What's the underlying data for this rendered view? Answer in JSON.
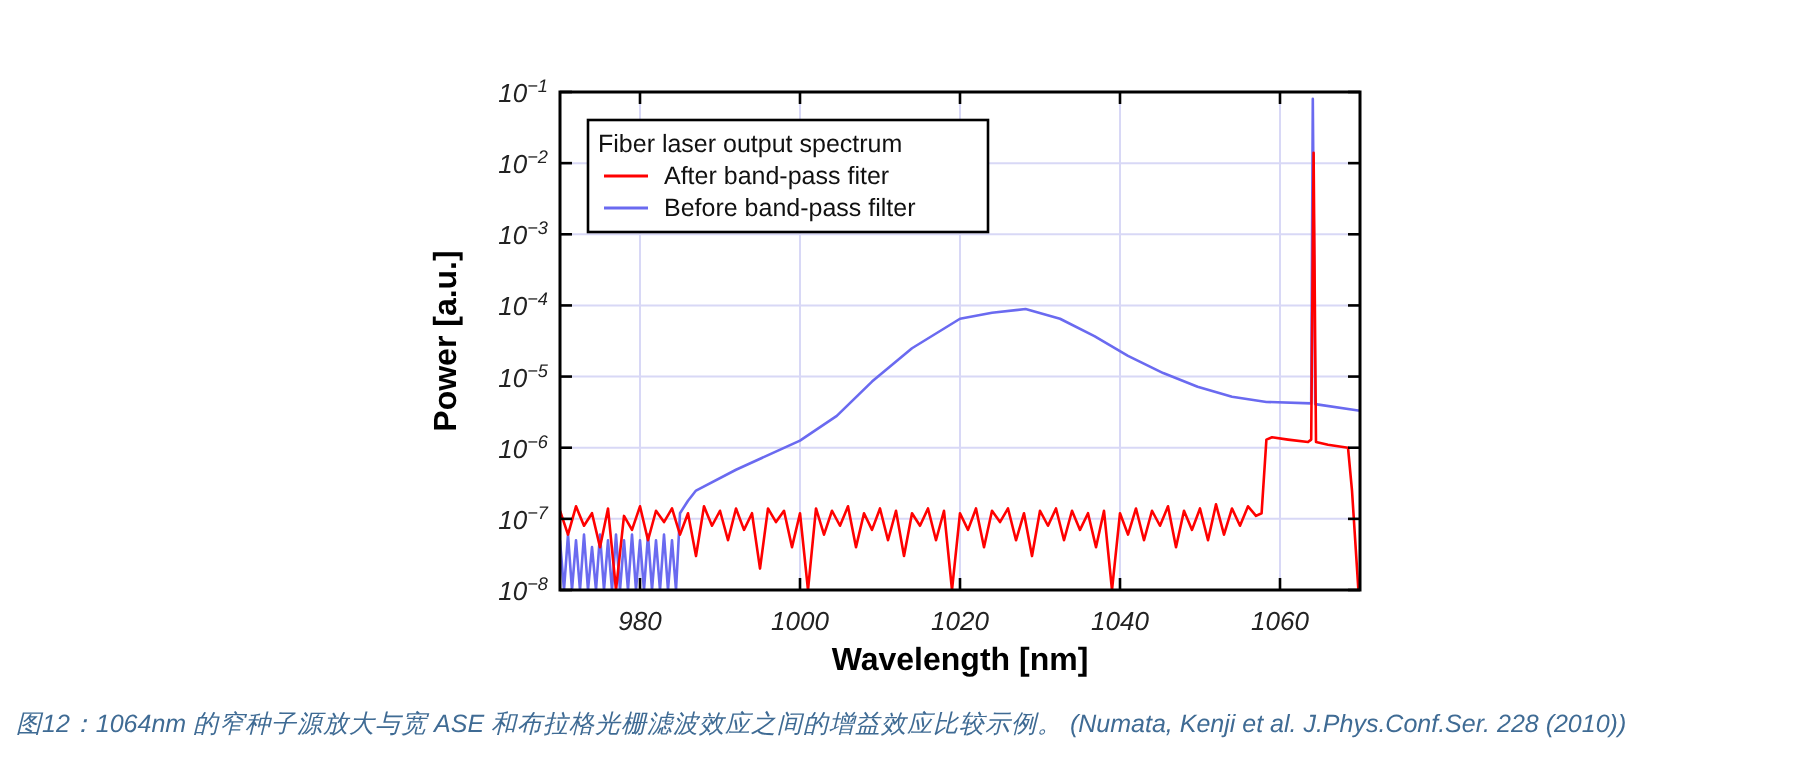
{
  "chart_data": {
    "type": "line",
    "xlabel": "Wavelength [nm]",
    "ylabel": "Power [a.u.]",
    "legend_title": "Fiber laser output spectrum",
    "legend": "top left",
    "grid": true,
    "log": "y",
    "xlim": [
      970,
      1070
    ],
    "xticks": [
      980,
      1000,
      1020,
      1040,
      1060
    ],
    "ylim": [
      1e-08,
      0.1
    ],
    "yticks": [
      {
        "value": 1e-08,
        "label": "10$^{−8}$"
      },
      {
        "value": 1e-07,
        "label": "10$^{−7}$"
      },
      {
        "value": 1e-06,
        "label": "10$^{−6}$"
      },
      {
        "value": 1e-05,
        "label": "10$^{−5}$"
      },
      {
        "value": 0.0001,
        "label": "10$^{−4}$"
      },
      {
        "value": 0.001,
        "label": "10$^{−3}$"
      },
      {
        "value": 0.01,
        "label": "10$^{−2}$"
      },
      {
        "value": 0.1,
        "label": "10$^{−1}$"
      }
    ],
    "series": [
      {
        "name": "After band-pass fiter",
        "color": "#ff0000",
        "x": [
          970,
          971,
          972,
          973,
          974,
          975,
          976,
          977,
          978,
          979,
          980,
          981,
          982,
          983,
          984,
          985,
          986,
          987,
          988,
          989,
          990,
          991,
          992,
          993,
          994,
          995,
          996,
          997,
          998,
          999,
          1000,
          1001,
          1002,
          1003,
          1004,
          1005,
          1006,
          1007,
          1008,
          1009,
          1010,
          1011,
          1012,
          1013,
          1014,
          1015,
          1016,
          1017,
          1018,
          1019,
          1020,
          1021,
          1022,
          1023,
          1024,
          1025,
          1026,
          1027,
          1028,
          1029,
          1030,
          1031,
          1032,
          1033,
          1034,
          1035,
          1036,
          1037,
          1038,
          1039,
          1040,
          1041,
          1042,
          1043,
          1044,
          1045,
          1046,
          1047,
          1048,
          1049,
          1050,
          1051,
          1052,
          1053,
          1054,
          1055,
          1056,
          1057,
          1057.7,
          1058.3,
          1059,
          1061,
          1063.5,
          1063.9,
          1064.2,
          1064.5,
          1066,
          1068.5,
          1069,
          1069.8
        ],
        "values": [
          1.3e-07,
          6e-08,
          1.5e-07,
          8e-08,
          1.2e-07,
          4e-08,
          1.4e-07,
          1e-08,
          1.1e-07,
          7e-08,
          1.5e-07,
          5e-08,
          1.3e-07,
          9e-08,
          1.4e-07,
          6e-08,
          1.2e-07,
          3e-08,
          1.5e-07,
          8e-08,
          1.3e-07,
          5e-08,
          1.4e-07,
          7e-08,
          1.2e-07,
          2e-08,
          1.4e-07,
          9e-08,
          1.3e-07,
          4e-08,
          1.2e-07,
          1e-08,
          1.4e-07,
          6e-08,
          1.3e-07,
          8e-08,
          1.5e-07,
          4e-08,
          1.2e-07,
          7e-08,
          1.4e-07,
          5e-08,
          1.3e-07,
          3e-08,
          1.2e-07,
          8e-08,
          1.4e-07,
          5e-08,
          1.3e-07,
          1e-08,
          1.2e-07,
          7e-08,
          1.4e-07,
          4e-08,
          1.3e-07,
          9e-08,
          1.4e-07,
          5e-08,
          1.2e-07,
          3e-08,
          1.3e-07,
          8e-08,
          1.4e-07,
          5e-08,
          1.3e-07,
          7e-08,
          1.2e-07,
          4e-08,
          1.3e-07,
          1e-08,
          1.2e-07,
          6e-08,
          1.4e-07,
          5e-08,
          1.3e-07,
          8e-08,
          1.5e-07,
          4e-08,
          1.3e-07,
          7e-08,
          1.4e-07,
          5e-08,
          1.6e-07,
          6e-08,
          1.4e-07,
          8e-08,
          1.5e-07,
          1.1e-07,
          1.2e-07,
          1.3e-06,
          1.4e-06,
          1.3e-06,
          1.2e-06,
          1.3e-06,
          0.014,
          1.2e-06,
          1.1e-06,
          1e-06,
          2.5e-07,
          1e-08
        ]
      },
      {
        "name": "Before band-pass filter",
        "color": "#6a6af0",
        "x": [
          970,
          970.5,
          971,
          971.5,
          972,
          972.5,
          973,
          973.5,
          974,
          974.5,
          975,
          975.5,
          976,
          976.5,
          977,
          977.5,
          978,
          978.5,
          979,
          979.5,
          980,
          980.5,
          981,
          981.5,
          982,
          982.5,
          983,
          983.5,
          984,
          984.5,
          985,
          986,
          987,
          992,
          1000,
          1004.6,
          1009,
          1014,
          1020,
          1024,
          1028.2,
          1032.5,
          1036.8,
          1041,
          1045.4,
          1049.7,
          1054,
          1058.3,
          1063.9,
          1064.1,
          1064.4,
          1070
        ],
        "values": [
          5e-08,
          1e-08,
          6e-08,
          1e-08,
          5e-08,
          1e-08,
          6e-08,
          1e-08,
          4e-08,
          1e-08,
          6e-08,
          1e-08,
          5e-08,
          1e-08,
          6e-08,
          1e-08,
          5e-08,
          1e-08,
          6e-08,
          1e-08,
          5e-08,
          1e-08,
          6e-08,
          1e-08,
          5e-08,
          1e-08,
          6e-08,
          1e-08,
          5e-08,
          1e-08,
          1.2e-07,
          1.8e-07,
          2.5e-07,
          4.9e-07,
          1.26e-06,
          2.8e-06,
          8.5e-06,
          2.5e-05,
          6.5e-05,
          7.9e-05,
          8.9e-05,
          6.5e-05,
          3.7e-05,
          1.95e-05,
          1.12e-05,
          7.2e-06,
          5.2e-06,
          4.4e-06,
          4.2e-06,
          0.08,
          4.1e-06,
          3.3e-06
        ]
      }
    ],
    "annotations": [
      "图12：1064nm 的窄种子源放大与宽 ASE 和布拉格光栅滤波效应之间的增益效应比较示例。 (Numata, Kenji et al. J.Phys.Conf.Ser. 228 (2010))"
    ]
  }
}
